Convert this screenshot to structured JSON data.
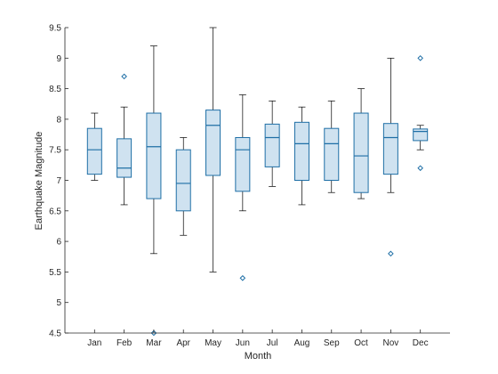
{
  "chart_data": {
    "type": "box",
    "title": "",
    "xlabel": "Month",
    "ylabel": "Earthquake Magnitude",
    "ylim": [
      4.5,
      9.5
    ],
    "yticks": [
      "4.5",
      "5",
      "5.5",
      "6",
      "6.5",
      "7",
      "7.5",
      "8",
      "8.5",
      "9",
      "9.5"
    ],
    "grid": false,
    "colors": {
      "box_fill": "#cfe2f0",
      "box_edge": "#1f6fa6",
      "whisker": "#000000",
      "outlier": "#1f6fa6",
      "axis": "#262626"
    },
    "categories": [
      "Jan",
      "Feb",
      "Mar",
      "Apr",
      "May",
      "Jun",
      "Jul",
      "Aug",
      "Sep",
      "Oct",
      "Nov",
      "Dec"
    ],
    "boxes": [
      {
        "month": "Jan",
        "whisker_low": 7.0,
        "q1": 7.1,
        "median": 7.5,
        "q3": 7.85,
        "whisker_high": 8.1,
        "outliers": []
      },
      {
        "month": "Feb",
        "whisker_low": 6.6,
        "q1": 7.05,
        "median": 7.2,
        "q3": 7.68,
        "whisker_high": 8.2,
        "outliers": [
          8.7
        ]
      },
      {
        "month": "Mar",
        "whisker_low": 5.8,
        "q1": 6.7,
        "median": 7.55,
        "q3": 8.1,
        "whisker_high": 9.2,
        "outliers": [
          4.5
        ]
      },
      {
        "month": "Apr",
        "whisker_low": 6.1,
        "q1": 6.5,
        "median": 6.95,
        "q3": 7.5,
        "whisker_high": 7.7,
        "outliers": []
      },
      {
        "month": "May",
        "whisker_low": 5.5,
        "q1": 7.08,
        "median": 7.9,
        "q3": 8.15,
        "whisker_high": 9.5,
        "outliers": []
      },
      {
        "month": "Jun",
        "whisker_low": 6.5,
        "q1": 6.82,
        "median": 7.5,
        "q3": 7.7,
        "whisker_high": 8.4,
        "outliers": [
          5.4
        ]
      },
      {
        "month": "Jul",
        "whisker_low": 6.9,
        "q1": 7.22,
        "median": 7.7,
        "q3": 7.92,
        "whisker_high": 8.3,
        "outliers": []
      },
      {
        "month": "Aug",
        "whisker_low": 6.6,
        "q1": 7.0,
        "median": 7.6,
        "q3": 7.95,
        "whisker_high": 8.2,
        "outliers": []
      },
      {
        "month": "Sep",
        "whisker_low": 6.8,
        "q1": 7.0,
        "median": 7.6,
        "q3": 7.85,
        "whisker_high": 8.3,
        "outliers": []
      },
      {
        "month": "Oct",
        "whisker_low": 6.7,
        "q1": 6.8,
        "median": 7.4,
        "q3": 8.1,
        "whisker_high": 8.5,
        "outliers": []
      },
      {
        "month": "Nov",
        "whisker_low": 6.8,
        "q1": 7.1,
        "median": 7.7,
        "q3": 7.93,
        "whisker_high": 9.0,
        "outliers": [
          5.8
        ]
      },
      {
        "month": "Dec",
        "whisker_low": 7.5,
        "q1": 7.65,
        "median": 7.8,
        "q3": 7.84,
        "whisker_high": 7.9,
        "outliers": [
          9.0,
          7.2
        ]
      }
    ]
  }
}
